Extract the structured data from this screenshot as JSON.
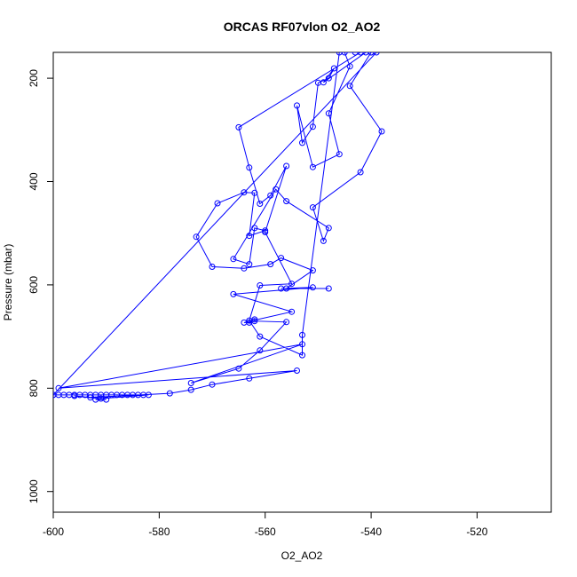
{
  "chart_data": {
    "type": "line",
    "title": "ORCAS RF07vlon O2_AO2",
    "xlabel": "O2_AO2",
    "ylabel": "Pressure (mbar)",
    "xlim": [
      -600,
      -506
    ],
    "ylim": [
      1040,
      150
    ],
    "y_reversed": true,
    "grid": false,
    "xticks": [
      -600,
      -580,
      -560,
      -540,
      -520
    ],
    "yticks": [
      200,
      400,
      600,
      800,
      1000
    ],
    "color": "#0000ff",
    "series": [
      {
        "points": [
          [
            -600,
            813
          ],
          [
            -599,
            813
          ],
          [
            -598,
            813
          ],
          [
            -597,
            813
          ],
          [
            -596,
            813
          ],
          [
            -595,
            813
          ],
          [
            -594,
            813
          ],
          [
            -593,
            813
          ],
          [
            -592,
            813
          ],
          [
            -591,
            813
          ],
          [
            -590,
            813
          ],
          [
            -589,
            813
          ],
          [
            -588,
            813
          ],
          [
            -587,
            813
          ],
          [
            -586,
            813
          ],
          [
            -585,
            813
          ],
          [
            -584,
            813
          ],
          [
            -583,
            813
          ],
          [
            -582,
            813
          ],
          [
            -591,
            820
          ],
          [
            -592,
            822
          ],
          [
            -590,
            822
          ],
          [
            -596,
            815
          ],
          [
            -593,
            818
          ],
          [
            -578,
            810
          ],
          [
            -574,
            803
          ],
          [
            -570,
            793
          ],
          [
            -563,
            781
          ],
          [
            -554,
            766
          ],
          [
            -599,
            800
          ],
          [
            -553,
            715
          ],
          [
            -574,
            790
          ],
          [
            -565,
            762
          ],
          [
            -561,
            727
          ],
          [
            -556,
            672
          ],
          [
            -562,
            670
          ],
          [
            -562,
            667
          ],
          [
            -563,
            673
          ],
          [
            -564,
            673
          ],
          [
            -555,
            652
          ],
          [
            -566,
            618
          ],
          [
            -551,
            605
          ],
          [
            -557,
            607
          ],
          [
            -548,
            607
          ],
          [
            -556,
            607
          ],
          [
            -551,
            572
          ],
          [
            -557,
            548
          ],
          [
            -559,
            560
          ],
          [
            -564,
            568
          ],
          [
            -570,
            565
          ],
          [
            -573,
            507
          ],
          [
            -569,
            442
          ],
          [
            -564,
            421
          ],
          [
            -562,
            422
          ],
          [
            -563,
            505
          ],
          [
            -560,
            495
          ],
          [
            -562,
            490
          ],
          [
            -563,
            560
          ],
          [
            -566,
            550
          ],
          [
            -558,
            415
          ],
          [
            -556,
            438
          ],
          [
            -548,
            490
          ],
          [
            -549,
            515
          ],
          [
            -551,
            450
          ],
          [
            -542,
            382
          ],
          [
            -538,
            303
          ],
          [
            -544,
            215
          ],
          [
            -540,
            150
          ],
          [
            -543,
            150
          ],
          [
            -545,
            150
          ],
          [
            -544,
            177
          ],
          [
            -548,
            268
          ],
          [
            -546,
            347
          ],
          [
            -551,
            372
          ],
          [
            -554,
            253
          ],
          [
            -553,
            325
          ],
          [
            -551,
            294
          ],
          [
            -550,
            209
          ],
          [
            -548,
            200
          ],
          [
            -547,
            181
          ],
          [
            -549,
            208
          ],
          [
            -541,
            150
          ],
          [
            -540,
            150
          ],
          [
            -542,
            150
          ],
          [
            -565,
            295
          ],
          [
            -563,
            373
          ],
          [
            -561,
            443
          ],
          [
            -559,
            427
          ],
          [
            -556,
            370
          ],
          [
            -560,
            498
          ],
          [
            -555,
            598
          ],
          [
            -561,
            601
          ],
          [
            -563,
            669
          ],
          [
            -561,
            700
          ],
          [
            -553,
            736
          ],
          [
            -553,
            697
          ],
          [
            -546,
            150
          ],
          [
            -539,
            150
          ],
          [
            -600,
            813
          ]
        ]
      }
    ]
  }
}
